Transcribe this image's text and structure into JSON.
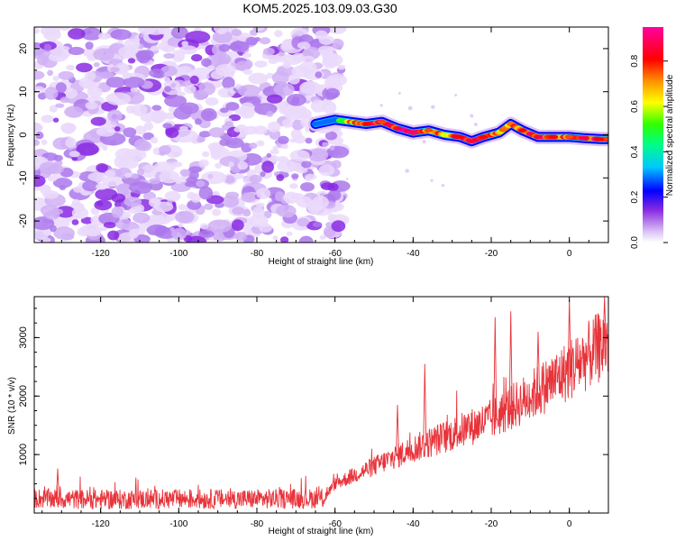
{
  "figure_title": "KOM5.2025.103.09.03.G30",
  "chart_data": [
    {
      "id": "spectrogram",
      "type": "heatmap",
      "title": "KOM5.2025.103.09.03.G30",
      "xlabel": "Height of straight line (km)",
      "ylabel": "Frequency (Hz)",
      "xlim": [
        -137,
        10
      ],
      "ylim": [
        -25,
        25
      ],
      "xticks": [
        -120,
        -100,
        -80,
        -60,
        -40,
        -20,
        0
      ],
      "yticks": [
        -20,
        -10,
        0,
        10,
        20
      ],
      "noise_region": {
        "x_range": [
          -137,
          -60
        ],
        "y_range": [
          -25,
          25
        ],
        "amplitude_range": [
          0.0,
          0.15
        ]
      },
      "signal_trace": {
        "description": "Narrowband frequency trace",
        "points": [
          {
            "x": -65,
            "y": 2.5,
            "amp": 0.15
          },
          {
            "x": -60,
            "y": 3.5,
            "amp": 0.3
          },
          {
            "x": -56,
            "y": 3.0,
            "amp": 0.7
          },
          {
            "x": -52,
            "y": 2.5,
            "amp": 0.85
          },
          {
            "x": -48,
            "y": 3.0,
            "amp": 0.8
          },
          {
            "x": -44,
            "y": 1.5,
            "amp": 0.9
          },
          {
            "x": -40,
            "y": 0.5,
            "amp": 0.95
          },
          {
            "x": -36,
            "y": 1.0,
            "amp": 0.8
          },
          {
            "x": -32,
            "y": 0.0,
            "amp": 0.7
          },
          {
            "x": -28,
            "y": -0.5,
            "amp": 0.85
          },
          {
            "x": -25,
            "y": -1.5,
            "amp": 0.9
          },
          {
            "x": -22,
            "y": -0.5,
            "amp": 0.85
          },
          {
            "x": -18,
            "y": 0.5,
            "amp": 0.75
          },
          {
            "x": -15,
            "y": 2.5,
            "amp": 0.7
          },
          {
            "x": -12,
            "y": 1.0,
            "amp": 0.85
          },
          {
            "x": -8,
            "y": -0.5,
            "amp": 0.9
          },
          {
            "x": -4,
            "y": -0.5,
            "amp": 0.85
          },
          {
            "x": 0,
            "y": -0.5,
            "amp": 0.8
          },
          {
            "x": 4,
            "y": -0.8,
            "amp": 0.9
          },
          {
            "x": 8,
            "y": -1.0,
            "amp": 0.85
          },
          {
            "x": 10,
            "y": -1.0,
            "amp": 0.8
          }
        ]
      },
      "colorbar": {
        "label": "Normalized spectral amplitude",
        "range": [
          0,
          0.95
        ],
        "ticks": [
          0.0,
          0.2,
          0.4,
          0.6,
          0.8
        ],
        "tick_labels": [
          "0.0",
          "0.2",
          "0.4",
          "0.6",
          "0.8"
        ]
      }
    },
    {
      "id": "snr",
      "type": "line",
      "xlabel": "Height of straight line (km)",
      "ylabel": "SNR (10 * v/v)",
      "xlim": [
        -137,
        10
      ],
      "ylim": [
        0,
        3700
      ],
      "xticks": [
        -120,
        -100,
        -80,
        -60,
        -40,
        -20,
        0
      ],
      "yticks": [
        1000,
        2000,
        3000
      ],
      "color": "#e8333a",
      "trend_points": [
        {
          "x": -137,
          "y": 250
        },
        {
          "x": -120,
          "y": 230
        },
        {
          "x": -100,
          "y": 240
        },
        {
          "x": -80,
          "y": 240
        },
        {
          "x": -63,
          "y": 250
        },
        {
          "x": -60,
          "y": 500
        },
        {
          "x": -50,
          "y": 800
        },
        {
          "x": -40,
          "y": 1100
        },
        {
          "x": -30,
          "y": 1350
        },
        {
          "x": -20,
          "y": 1600
        },
        {
          "x": -10,
          "y": 2000
        },
        {
          "x": 0,
          "y": 2450
        },
        {
          "x": 10,
          "y": 2950
        }
      ],
      "noise_amplitude_fraction": 0.22,
      "spikes": [
        {
          "x": -131,
          "y": 760
        },
        {
          "x": -44,
          "y": 1850
        },
        {
          "x": -37,
          "y": 2550
        },
        {
          "x": -19,
          "y": 3350
        },
        {
          "x": -15,
          "y": 3450
        },
        {
          "x": -8,
          "y": 3100
        },
        {
          "x": 0,
          "y": 3650
        },
        {
          "x": 9,
          "y": 3700
        }
      ]
    }
  ]
}
